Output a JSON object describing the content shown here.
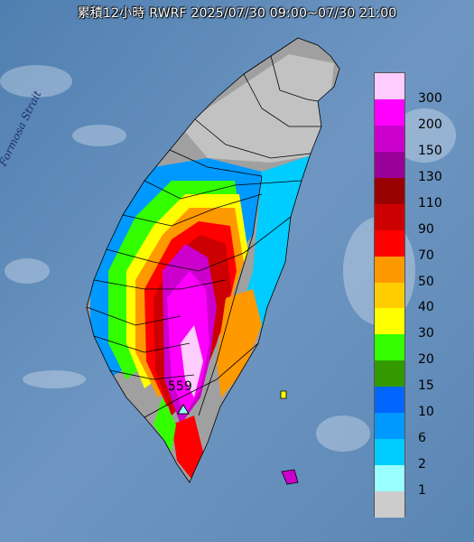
{
  "title": "累積12小時 RWRF 2025/07/30 09:00~07/30 21:00",
  "strait_label": "Formosa Strait",
  "peak": {
    "value": "559",
    "marker": "triangle-marker-icon"
  },
  "legend": {
    "labels": [
      "300",
      "200",
      "150",
      "130",
      "110",
      "90",
      "70",
      "50",
      "40",
      "30",
      "20",
      "15",
      "10",
      "6",
      "2",
      "1"
    ],
    "colors": [
      "#ffccff",
      "#ff00ff",
      "#cc00cc",
      "#990099",
      "#990000",
      "#cc0000",
      "#ff0000",
      "#ff9900",
      "#ffcc00",
      "#ffff00",
      "#33ff00",
      "#339900",
      "#0066ff",
      "#0099ff",
      "#00ccff",
      "#99ffff",
      "#cccccc"
    ]
  },
  "colors": {
    "sea": "#5b88b8",
    "land": "#8a8a8a",
    "boundary": "#000000"
  }
}
